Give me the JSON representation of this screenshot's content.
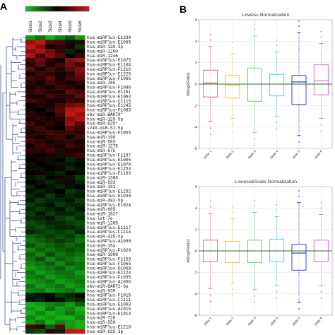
{
  "panels": {
    "a_label": "A",
    "b_label": "B"
  },
  "colors": {
    "red": "#d81818",
    "black": "#000000",
    "green": "#17c017",
    "tree": "#2c3f8f",
    "grid": "#d8d8d8",
    "mean_line": "#2a6a2a"
  },
  "chart_data": [
    {
      "type": "heatmap",
      "title": "",
      "columns": [
        "Slide1",
        "Slide2",
        "Slide3",
        "Slide4",
        "Slide5",
        "Slide6"
      ],
      "color_scale": [
        "#17c017",
        "#000000",
        "#d81818"
      ],
      "rows": [
        "hsa-miRPlus-E1290",
        "hsa-miRPlus-E1065",
        "hsa-miR-139-3p",
        "hsa-miR-1290",
        "hsa-miR-1246",
        "hsa-miRPlus-E1075",
        "hsa-miRPlus-E1104",
        "hsa-miRPlus-F1216",
        "hsa-miRPlus-E1225",
        "hsa-miRPlus-F1066",
        "hsa-miR-765",
        "hsa-miRPlus-F1086",
        "hsa-miRPlus-E1151",
        "hsa-miRPlus-E1063",
        "hsa-miRPlus-C1115",
        "hsa-miRPlus-E1245",
        "hsa-miRPlus-F1083",
        "ebv-miR-BART8*",
        "hsa-miR-129-5p",
        "hsa-miR-625*",
        "sv40-miR-S1-5p",
        "hsa-miRPlus-F1055",
        "hsa-miR-198",
        "hsa-miR-583",
        "hsa-miR-1275",
        "hsa-miR-675",
        "hsa-miRPlus-F1187",
        "hsa-miRPlus-E1005",
        "hsa-miRPlus-E1078",
        "hsa-miRPlus-E1253",
        "hsa-miRPlus-E1103",
        "hsa-miR-1308",
        "hsa-miR-933",
        "hsa-miR-191",
        "hsa-miRPlus-E1252",
        "hsa-miRPlus-E1030",
        "hsa-miR-483-5p",
        "hsa-miRPlus-E1024",
        "hsa-miR-665",
        "hsa-miR-1827",
        "hsa-let-7e",
        "hsa-miR-1285",
        "hsa-miRPlus-E1117",
        "hsa-miRPlus-F1114",
        "hsa-miR-425-5p",
        "hsa-miRPlus-A1098",
        "hsa-miR-15a",
        "hsa-miRPlus-F1029",
        "hsa-miR-1908",
        "hsa-miRPlus-F1159",
        "hsa-miRPlus-F1065",
        "hsa-miRPlus-D1058",
        "hsa-miRPlus-E1124",
        "hsa-miRPlus-F1035",
        "hsa-miRPlus-A1056",
        "ebv-miR-BART2-3p",
        "hsa-miR-939",
        "hsa-miRPlus-F1015",
        "hsa-miRPlus-F1111",
        "hsa-miRPlus-E1003",
        "hsa-miRPlus-A1015",
        "hsa-miRPlus-E1013",
        "hsa-miR-720",
        "hsa-miR-550",
        "hsa-miRPlus-E1218",
        "hsa-miR-625-3p"
      ],
      "values": [
        [
          -0.8,
          -0.6,
          -0.9,
          -0.7,
          -0.5,
          -0.8
        ],
        [
          0.7,
          0.9,
          0.4,
          0.3,
          -0.1,
          0.2
        ],
        [
          0.9,
          0.6,
          0.1,
          0.2,
          0.1,
          -0.3
        ],
        [
          0.6,
          0.8,
          0.5,
          0.2,
          -0.2,
          0.1
        ],
        [
          0.8,
          0.3,
          0.6,
          0.4,
          0.0,
          0.2
        ],
        [
          0.3,
          0.5,
          0.2,
          0.0,
          0.6,
          0.7
        ],
        [
          0.2,
          0.4,
          0.1,
          0.3,
          0.5,
          0.3
        ],
        [
          0.4,
          0.1,
          0.3,
          0.2,
          0.4,
          0.6
        ],
        [
          0.1,
          0.3,
          0.2,
          0.1,
          0.2,
          0.5
        ],
        [
          0.3,
          0.2,
          0.4,
          0.1,
          0.3,
          0.4
        ],
        [
          0.2,
          0.1,
          0.3,
          0.2,
          0.1,
          0.2
        ],
        [
          0.1,
          0.2,
          0.1,
          0.3,
          0.2,
          0.1
        ],
        [
          0.2,
          0.3,
          0.2,
          0.1,
          0.4,
          0.3
        ],
        [
          0.1,
          0.1,
          0.3,
          0.2,
          0.2,
          0.4
        ],
        [
          0.3,
          0.2,
          0.1,
          0.1,
          0.3,
          0.2
        ],
        [
          0.0,
          0.2,
          0.1,
          0.3,
          0.5,
          0.6
        ],
        [
          0.1,
          0.0,
          0.2,
          0.4,
          0.8,
          0.9
        ],
        [
          0.2,
          0.1,
          0.0,
          0.3,
          0.9,
          0.7
        ],
        [
          0.1,
          0.2,
          0.1,
          0.2,
          0.6,
          0.8
        ],
        [
          0.3,
          0.1,
          0.2,
          0.1,
          0.7,
          0.4
        ],
        [
          0.2,
          0.3,
          0.1,
          0.0,
          0.4,
          0.3
        ],
        [
          0.1,
          0.2,
          0.3,
          0.2,
          0.3,
          0.2
        ],
        [
          0.2,
          0.1,
          0.2,
          0.3,
          0.1,
          0.3
        ],
        [
          0.3,
          0.2,
          0.1,
          0.2,
          0.2,
          0.1
        ],
        [
          0.1,
          0.3,
          0.2,
          0.1,
          0.3,
          0.2
        ],
        [
          0.2,
          0.2,
          0.3,
          0.2,
          0.1,
          0.1
        ],
        [
          0.1,
          0.0,
          0.1,
          -0.1,
          0.2,
          0.3
        ],
        [
          0.0,
          0.1,
          -0.1,
          0.0,
          -0.2,
          -0.1
        ],
        [
          -0.1,
          0.0,
          0.1,
          -0.1,
          -0.1,
          0.0
        ],
        [
          0.1,
          -0.1,
          0.0,
          0.1,
          -0.2,
          -0.1
        ],
        [
          0.0,
          0.1,
          -0.1,
          -0.2,
          0.0,
          -0.1
        ],
        [
          -0.1,
          -0.2,
          0.0,
          0.1,
          -0.1,
          -0.3
        ],
        [
          0.0,
          -0.1,
          -0.2,
          -0.1,
          0.1,
          -0.2
        ],
        [
          -0.2,
          0.0,
          -0.1,
          -0.2,
          -0.1,
          0.0
        ],
        [
          -0.1,
          -0.2,
          -0.1,
          0.0,
          -0.3,
          -0.2
        ],
        [
          -0.2,
          -0.1,
          -0.3,
          -0.1,
          -0.2,
          -0.1
        ],
        [
          -0.1,
          -0.3,
          -0.2,
          -0.2,
          -0.1,
          -0.3
        ],
        [
          -0.3,
          -0.2,
          -0.1,
          -0.3,
          -0.2,
          -0.2
        ],
        [
          -0.2,
          -0.3,
          -0.2,
          -0.1,
          -0.3,
          -0.1
        ],
        [
          -0.3,
          -0.1,
          -0.3,
          -0.2,
          -0.2,
          -0.3
        ],
        [
          -0.2,
          -0.2,
          -0.1,
          -0.3,
          -0.4,
          -0.2
        ],
        [
          -0.4,
          -0.3,
          -0.2,
          -0.2,
          -0.3,
          -0.4
        ],
        [
          -0.3,
          -0.4,
          -0.3,
          -0.2,
          -0.2,
          -0.3
        ],
        [
          -0.2,
          -0.3,
          -0.4,
          -0.3,
          -0.4,
          -0.2
        ],
        [
          -0.5,
          -0.4,
          -0.3,
          -0.4,
          -0.3,
          -0.5
        ],
        [
          -0.6,
          -0.5,
          -0.4,
          -0.3,
          -0.4,
          -0.6
        ],
        [
          -0.4,
          -0.6,
          -0.5,
          -0.4,
          -0.5,
          -0.4
        ],
        [
          -0.7,
          -0.5,
          -0.6,
          -0.5,
          -0.4,
          -0.5
        ],
        [
          -0.5,
          -0.7,
          -0.4,
          -0.6,
          -0.5,
          -0.6
        ],
        [
          -0.6,
          -0.4,
          -0.7,
          -0.5,
          -0.6,
          -0.7
        ],
        [
          -0.7,
          -0.6,
          -0.5,
          -0.7,
          -0.5,
          -0.6
        ],
        [
          -0.8,
          -0.7,
          -0.6,
          -0.5,
          -0.7,
          -0.6
        ],
        [
          -0.6,
          -0.8,
          -0.7,
          -0.6,
          -0.6,
          -0.8
        ],
        [
          -0.7,
          -0.6,
          -0.8,
          -0.7,
          -0.6,
          -0.7
        ],
        [
          -0.8,
          -0.7,
          -0.6,
          -0.8,
          -0.7,
          -0.6
        ],
        [
          -0.6,
          -0.8,
          -0.7,
          -0.6,
          -0.8,
          -0.7
        ],
        [
          -0.7,
          -0.6,
          -0.8,
          -0.7,
          -0.6,
          -0.8
        ],
        [
          -0.2,
          -0.1,
          0.1,
          -0.3,
          -0.2,
          0.0
        ],
        [
          -0.1,
          -0.2,
          0.0,
          -0.1,
          -0.3,
          -0.2
        ],
        [
          -0.9,
          -0.8,
          -0.7,
          -0.6,
          -0.8,
          -0.5
        ],
        [
          -0.8,
          -0.9,
          -0.6,
          -0.8,
          -0.7,
          -0.9
        ],
        [
          -0.9,
          -0.7,
          -0.9,
          -0.8,
          -0.6,
          -0.8
        ],
        [
          -0.7,
          -0.9,
          -0.8,
          -0.9,
          -0.9,
          -0.7
        ],
        [
          -0.8,
          -0.6,
          -0.9,
          -0.7,
          -0.8,
          -0.9
        ],
        [
          0.3,
          0.2,
          -0.5,
          0.4,
          -0.8,
          -0.9
        ],
        [
          -0.3,
          -0.4,
          0.2,
          -0.2,
          0.9,
          0.95
        ]
      ]
    },
    {
      "type": "box",
      "title": "Lowess Normalization",
      "ylabel": "M(log2Ratio)",
      "ylim": [
        -6,
        6
      ],
      "yticks": [
        -6,
        -4,
        -2,
        0,
        2,
        4,
        6
      ],
      "categories": [
        "Slide 1",
        "Slide 2",
        "Slide 3",
        "Slide 4",
        "Slide 5",
        "Slide 6"
      ],
      "box_colors": [
        "#e8505b",
        "#e6c02a",
        "#5ccf5c",
        "#3fd0e0",
        "#2a2ad0",
        "#d060d0"
      ],
      "boxes": [
        {
          "q1": -1.2,
          "median": 0.1,
          "q3": 1.3,
          "low": -3.5,
          "high": 3.5
        },
        {
          "q1": -1.3,
          "median": -0.1,
          "q3": 0.8,
          "low": -3.2,
          "high": 2.8
        },
        {
          "q1": -1.6,
          "median": 0.0,
          "q3": 1.5,
          "low": -4.5,
          "high": 4.5
        },
        {
          "q1": -1.1,
          "median": 0.0,
          "q3": 0.9,
          "low": -3.0,
          "high": 3.0
        },
        {
          "q1": -1.9,
          "median": 0.2,
          "q3": 0.8,
          "low": -4.8,
          "high": 4.8
        },
        {
          "q1": -1.0,
          "median": 0.3,
          "q3": 1.8,
          "low": -3.2,
          "high": 3.8
        }
      ]
    },
    {
      "type": "box",
      "title": "Lowess&Scale Normalization",
      "ylabel": "M(log2Ratio)",
      "ylim": [
        -6,
        6
      ],
      "yticks": [
        -6,
        -4,
        -2,
        0,
        2,
        4,
        6
      ],
      "categories": [
        "Slide 1",
        "Slide 2",
        "Slide 3",
        "Slide 4",
        "Slide 5",
        "Slide 6"
      ],
      "box_colors": [
        "#e8505b",
        "#e6c02a",
        "#5ccf5c",
        "#3fd0e0",
        "#2a2ad0",
        "#d060d0"
      ],
      "boxes": [
        {
          "q1": -1.0,
          "median": 0.0,
          "q3": 1.0,
          "low": -3.5,
          "high": 3.5
        },
        {
          "q1": -1.1,
          "median": 0.0,
          "q3": 0.9,
          "low": -3.0,
          "high": 3.0
        },
        {
          "q1": -1.1,
          "median": 0.0,
          "q3": 1.0,
          "low": -3.6,
          "high": 3.6
        },
        {
          "q1": -1.0,
          "median": 0.0,
          "q3": 1.1,
          "low": -3.2,
          "high": 3.2
        },
        {
          "q1": -1.8,
          "median": -0.2,
          "q3": 0.6,
          "low": -4.8,
          "high": 4.5
        },
        {
          "q1": -1.0,
          "median": 0.0,
          "q3": 1.0,
          "low": -3.2,
          "high": 3.4
        }
      ]
    }
  ]
}
